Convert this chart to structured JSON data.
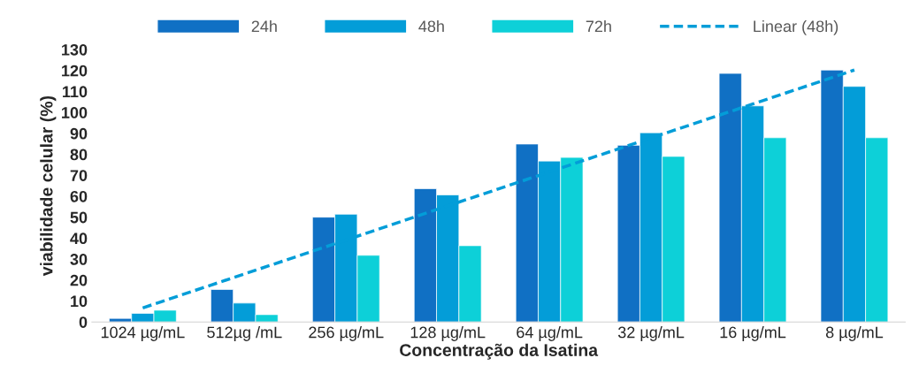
{
  "chart_data": {
    "type": "bar",
    "xlabel": "Concentração da Isatina",
    "ylabel": "viabilidade celular (%)",
    "categories": [
      "1024 µg/mL",
      "512µg /mL",
      "256 µg/mL",
      "128 µg/mL",
      "64 µg/mL",
      "32 µg/mL",
      "16 µg/mL",
      "8 µg/mL"
    ],
    "series": [
      {
        "name": "24h",
        "color": "#1070c4",
        "values": [
          1.7,
          15.5,
          50,
          63.6,
          84.9,
          84.3,
          118.6,
          120.2
        ]
      },
      {
        "name": "48h",
        "color": "#039dd8",
        "values": [
          4.1,
          9,
          51.4,
          60.6,
          76.8,
          90.3,
          103.1,
          112.4
        ]
      },
      {
        "name": "72h",
        "color": "#0dd0d8",
        "values": [
          5.6,
          3.5,
          31.8,
          36.4,
          78.5,
          79,
          87.9,
          87.9
        ]
      },
      {
        "name": "Linear (48h)",
        "type": "line",
        "line_style": "dashed",
        "color": "#039dd8",
        "values": [
          6.7,
          22.9,
          39.1,
          55.4,
          71.6,
          87.8,
          104.0,
          120.2
        ]
      }
    ],
    "ylim": [
      0,
      130
    ],
    "yticks": [
      0,
      10,
      20,
      30,
      40,
      50,
      60,
      70,
      80,
      90,
      100,
      110,
      120,
      130
    ],
    "grid": false,
    "legend": "top"
  }
}
